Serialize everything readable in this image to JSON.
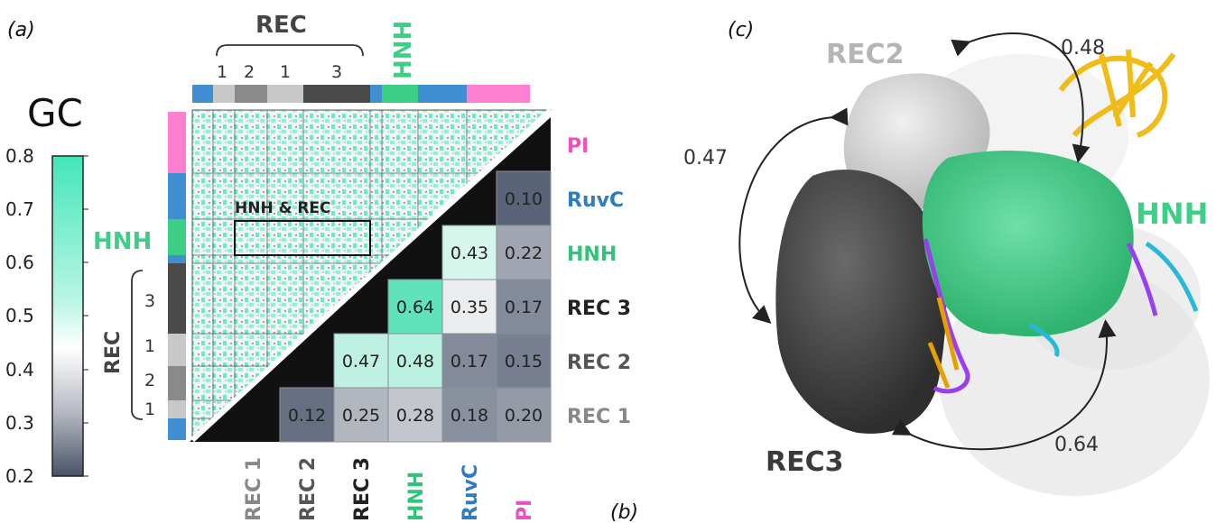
{
  "panel_labels": {
    "a": "(a)",
    "b": "(b)",
    "c": "(c)"
  },
  "colorbar": {
    "title": "GC",
    "ticks": [
      "0.8",
      "0.7",
      "0.6",
      "0.5",
      "0.4",
      "0.3",
      "0.2"
    ],
    "range": [
      0.2,
      0.8
    ]
  },
  "domain_labels": {
    "rec_group": "REC",
    "hnh": "HNH",
    "rec_sub": [
      "1",
      "2",
      "1",
      "3"
    ],
    "left_rec_sub": [
      "3",
      "1",
      "2",
      "1"
    ],
    "box_label": "HNH & REC"
  },
  "colors": {
    "pi": "#ff80d0",
    "ruvc": "#3f8fd2",
    "hnh": "#3ecf86",
    "rec1": "#c8c8c8",
    "rec2": "#8a8a8a",
    "rec3": "#4a4a4a",
    "heat": "#5fe3c0",
    "dark_tri": "#111111"
  },
  "matrix": {
    "rows": [
      "PI",
      "RuvC",
      "HNH",
      "REC 3",
      "REC 2",
      "REC 1"
    ],
    "cols": [
      "REC 1",
      "REC 2",
      "REC 3",
      "HNH",
      "RuvC",
      "PI"
    ],
    "cells": [
      {
        "row": "RuvC",
        "col": "PI",
        "value": "0.10"
      },
      {
        "row": "HNH",
        "col": "RuvC",
        "value": "0.43"
      },
      {
        "row": "HNH",
        "col": "PI",
        "value": "0.22"
      },
      {
        "row": "REC 3",
        "col": "HNH",
        "value": "0.64"
      },
      {
        "row": "REC 3",
        "col": "RuvC",
        "value": "0.35"
      },
      {
        "row": "REC 3",
        "col": "PI",
        "value": "0.17"
      },
      {
        "row": "REC 2",
        "col": "REC 3",
        "value": "0.47"
      },
      {
        "row": "REC 2",
        "col": "HNH",
        "value": "0.48"
      },
      {
        "row": "REC 2",
        "col": "RuvC",
        "value": "0.17"
      },
      {
        "row": "REC 2",
        "col": "PI",
        "value": "0.15"
      },
      {
        "row": "REC 1",
        "col": "REC 2",
        "value": "0.12"
      },
      {
        "row": "REC 1",
        "col": "REC 3",
        "value": "0.25"
      },
      {
        "row": "REC 1",
        "col": "HNH",
        "value": "0.28"
      },
      {
        "row": "REC 1",
        "col": "RuvC",
        "value": "0.18"
      },
      {
        "row": "REC 1",
        "col": "PI",
        "value": "0.20"
      }
    ]
  },
  "structure": {
    "labels": {
      "rec2": "REC2",
      "rec3": "REC3",
      "hnh": "HNH"
    },
    "arrows": {
      "rec2_hnh": "0.48",
      "rec2_rec3": "0.47",
      "rec3_hnh": "0.64"
    }
  }
}
